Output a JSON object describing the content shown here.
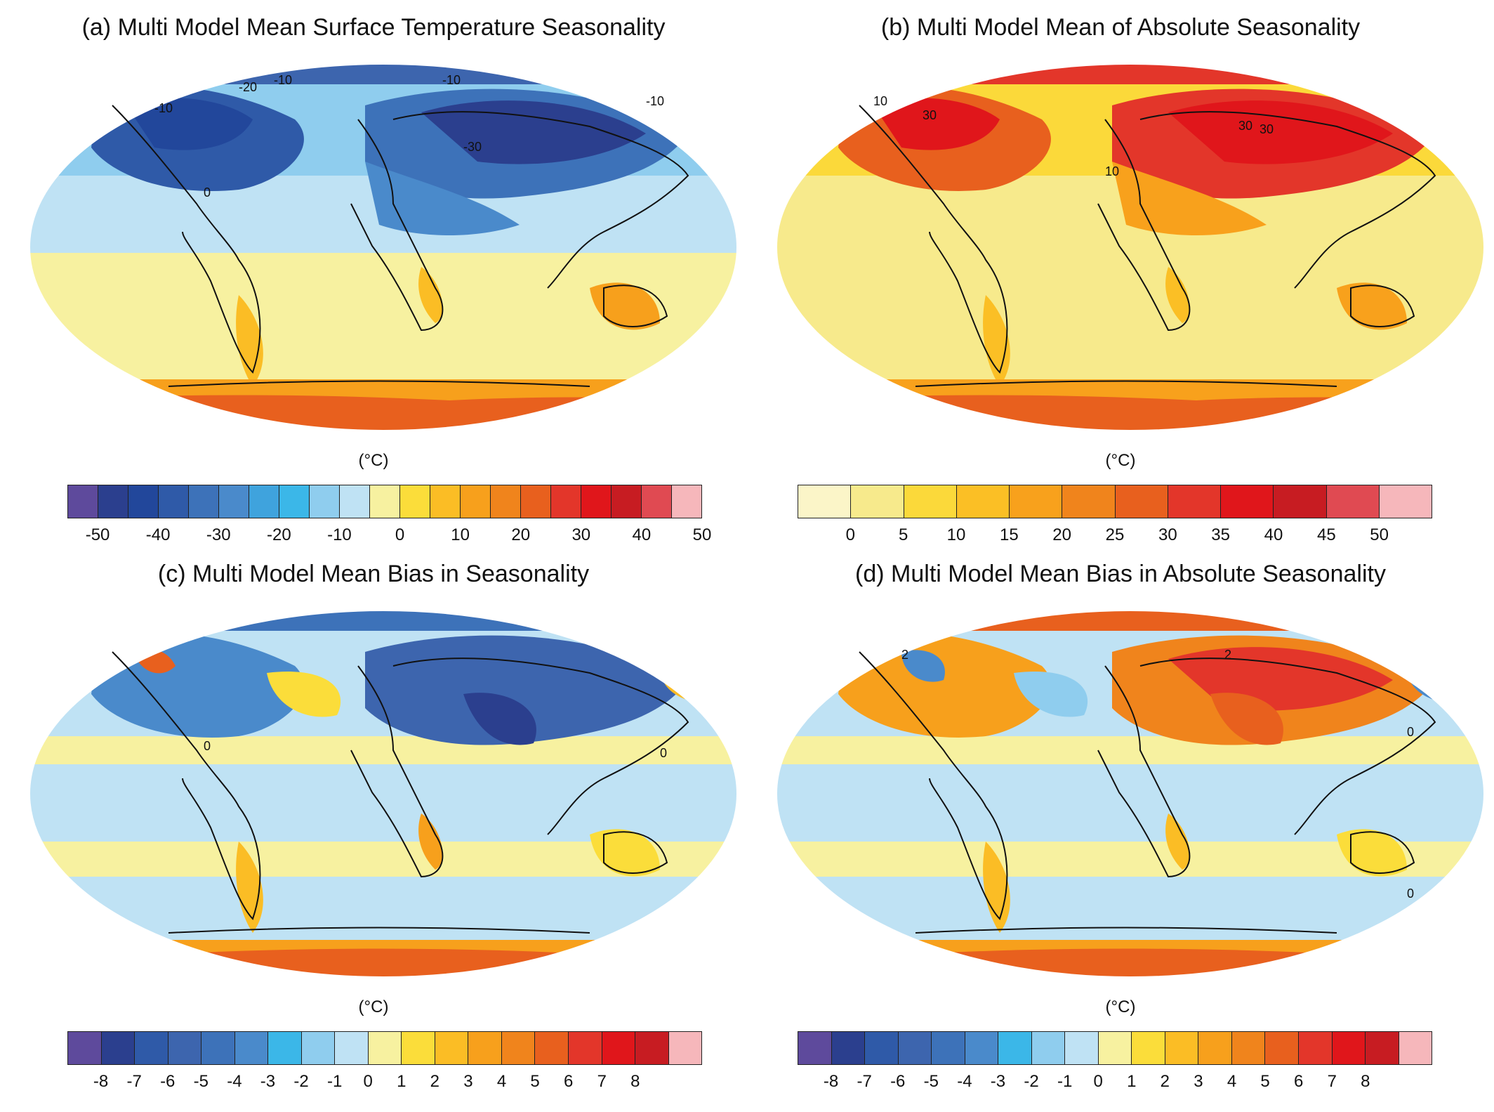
{
  "panels": [
    {
      "id": "a",
      "title": "(a) Multi Model Mean Surface Temperature Seasonality",
      "unit": "(°C)",
      "colorbar": {
        "colors": [
          "#5e4a9c",
          "#2b3f8e",
          "#22479b",
          "#2f5aa8",
          "#3d72b9",
          "#4a8acb",
          "#3fa3dd",
          "#3bb7e8",
          "#8fcdee",
          "#bfe2f4",
          "#f7f1a0",
          "#fbdd3a",
          "#fbbd25",
          "#f7a01c",
          "#f0841c",
          "#e8601e",
          "#e3362a",
          "#e0161b",
          "#c71c22",
          "#e04a52",
          "#f6b7bb"
        ],
        "tick_labels": [
          "-50",
          "-40",
          "-30",
          "-20",
          "-10",
          "0",
          "10",
          "20",
          "30",
          "40",
          "50"
        ],
        "tick_boundaries": [
          1,
          3,
          5,
          7,
          9,
          11,
          13,
          15,
          17,
          19,
          21
        ]
      },
      "contour_labels": [
        "-20",
        "-10",
        "-30",
        "-10",
        "-10",
        "-10",
        "0"
      ]
    },
    {
      "id": "b",
      "title": "(b) Multi Model Mean of Absolute Seasonality",
      "unit": "(°C)",
      "colorbar": {
        "colors": [
          "#fbf5c8",
          "#f7ea8c",
          "#fbd93a",
          "#fbbf25",
          "#f8a11c",
          "#f0841c",
          "#e8601e",
          "#e3362a",
          "#e0161b",
          "#c71c22",
          "#e04a52",
          "#f6b7bb"
        ],
        "tick_labels": [
          "0",
          "5",
          "10",
          "15",
          "20",
          "25",
          "30",
          "35",
          "40",
          "45",
          "50"
        ],
        "tick_boundaries": [
          1,
          2,
          3,
          4,
          5,
          6,
          7,
          8,
          9,
          10,
          11
        ]
      },
      "contour_labels": [
        "10",
        "30",
        "30",
        "30",
        "10"
      ]
    },
    {
      "id": "c",
      "title": "(c) Multi Model Mean Bias in Seasonality",
      "unit": "(°C)",
      "colorbar": {
        "colors": [
          "#5e4a9c",
          "#2b3f8e",
          "#2f5aa8",
          "#3d65ae",
          "#3d72b9",
          "#4a8acb",
          "#3bb7e8",
          "#8fcdee",
          "#bfe2f4",
          "#f7f1a0",
          "#fbdd3a",
          "#fbbd25",
          "#f7a01c",
          "#f0841c",
          "#e8601e",
          "#e3362a",
          "#e0161b",
          "#c71c22",
          "#f6b7bb"
        ],
        "tick_labels": [
          "-8",
          "-7",
          "-6",
          "-5",
          "-4",
          "-3",
          "-2",
          "-1",
          "0",
          "1",
          "2",
          "3",
          "4",
          "5",
          "6",
          "7",
          "8"
        ],
        "tick_boundaries": [
          1,
          2,
          3,
          4,
          5,
          6,
          7,
          8,
          9,
          10,
          11,
          12,
          13,
          14,
          15,
          16,
          17
        ]
      },
      "contour_labels": [
        "0",
        "0"
      ]
    },
    {
      "id": "d",
      "title": "(d) Multi Model Mean Bias in Absolute Seasonality",
      "unit": "(°C)",
      "colorbar": {
        "colors": [
          "#5e4a9c",
          "#2b3f8e",
          "#2f5aa8",
          "#3d65ae",
          "#3d72b9",
          "#4a8acb",
          "#3bb7e8",
          "#8fcdee",
          "#bfe2f4",
          "#f7f1a0",
          "#fbdd3a",
          "#fbbd25",
          "#f7a01c",
          "#f0841c",
          "#e8601e",
          "#e3362a",
          "#e0161b",
          "#c71c22",
          "#f6b7bb"
        ],
        "tick_labels": [
          "-8",
          "-7",
          "-6",
          "-5",
          "-4",
          "-3",
          "-2",
          "-1",
          "0",
          "1",
          "2",
          "3",
          "4",
          "5",
          "6",
          "7",
          "8"
        ],
        "tick_boundaries": [
          1,
          2,
          3,
          4,
          5,
          6,
          7,
          8,
          9,
          10,
          11,
          12,
          13,
          14,
          15,
          16,
          17
        ]
      },
      "contour_labels": [
        "2",
        "2",
        "0",
        "0"
      ]
    }
  ]
}
